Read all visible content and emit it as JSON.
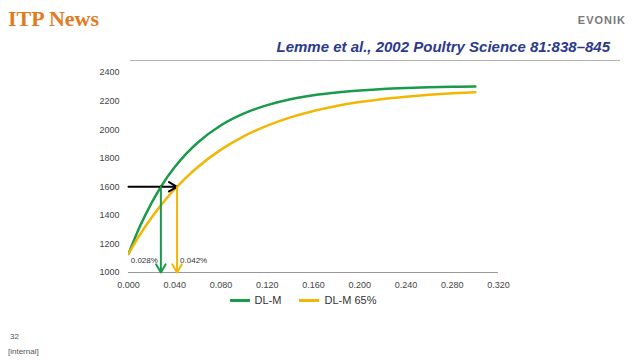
{
  "slide": {
    "logo_left": "ITP News",
    "logo_right": "EVONIK",
    "page": "32",
    "footer": "[internal]"
  },
  "chart_data": {
    "type": "line",
    "title": "Lemme et al., 2002 Poultry Science 81:838–845",
    "x": [
      0,
      0.01,
      0.02,
      0.028,
      0.04,
      0.042,
      0.05,
      0.06,
      0.08,
      0.1,
      0.12,
      0.14,
      0.16,
      0.18,
      0.2,
      0.22,
      0.24,
      0.26,
      0.28,
      0.3
    ],
    "series": [
      {
        "name": "DL-M",
        "color": "#1a9a4a",
        "values": [
          1130,
          1325,
          1488,
          1600,
          1738,
          1758,
          1832,
          1910,
          2031,
          2114,
          2172,
          2213,
          2241,
          2260,
          2274,
          2285,
          2292,
          2297,
          2300,
          2302
        ]
      },
      {
        "name": "DL-M 65%",
        "color": "#f2b705",
        "values": [
          1130,
          1266,
          1385,
          1470,
          1584,
          1600,
          1666,
          1739,
          1860,
          1955,
          2028,
          2086,
          2131,
          2166,
          2193,
          2215,
          2231,
          2244,
          2254,
          2262
        ]
      }
    ],
    "xlim": [
      0,
      0.32
    ],
    "xticks": [
      {
        "value": 0,
        "label": "0.000"
      },
      {
        "value": 0.04,
        "label": "0.040"
      },
      {
        "value": 0.08,
        "label": "0.080"
      },
      {
        "value": 0.12,
        "label": "0.120"
      },
      {
        "value": 0.16,
        "label": "0.160"
      },
      {
        "value": 0.2,
        "label": "0.200"
      },
      {
        "value": 0.24,
        "label": "0.240"
      },
      {
        "value": 0.28,
        "label": "0.280"
      },
      {
        "value": 0.32,
        "label": "0.320"
      }
    ],
    "ylim": [
      1000,
      2400
    ],
    "yticks": [
      1000,
      1200,
      1400,
      1600,
      1800,
      2000,
      2200,
      2400
    ],
    "grid": false,
    "legend": "bottom",
    "reference": {
      "y": 1600,
      "color": "#000000"
    },
    "annotations": [
      {
        "text": "0.028%",
        "x": 0.028,
        "color": "#1a9a4a"
      },
      {
        "text": "0.042%",
        "x": 0.042,
        "color": "#f2b705"
      }
    ]
  }
}
